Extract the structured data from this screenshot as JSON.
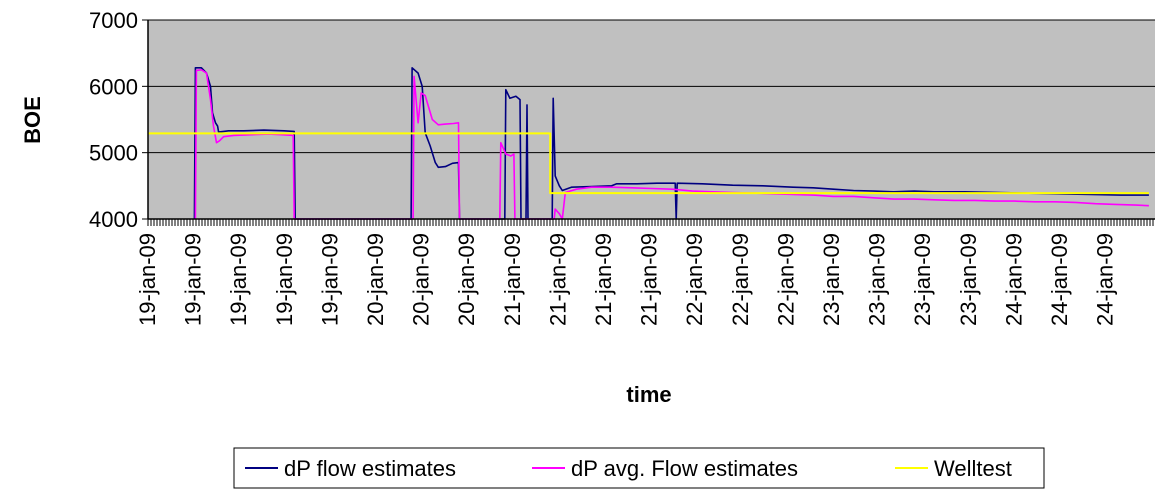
{
  "chart_data": {
    "type": "line",
    "xlabel": "time",
    "ylabel": "BOE",
    "ylim": [
      4000,
      7000
    ],
    "yticks": [
      "4000",
      "5000",
      "6000",
      "7000"
    ],
    "x_tick_labels": [
      "19-jan-09",
      "19-jan-09",
      "19-jan-09",
      "19-jan-09",
      "19-jan-09",
      "20-jan-09",
      "20-jan-09",
      "20-jan-09",
      "21-jan-09",
      "21-jan-09",
      "21-jan-09",
      "21-jan-09",
      "22-jan-09",
      "22-jan-09",
      "22-jan-09",
      "23-jan-09",
      "23-jan-09",
      "23-jan-09",
      "23-jan-09",
      "24-jan-09",
      "24-jan-09",
      "24-jan-09"
    ],
    "x_domain": [
      0,
      100
    ],
    "plot_background": "#C0C0C0",
    "grid": true,
    "legend_position": "bottom",
    "series": [
      {
        "name": "dP flow estimates",
        "color": "#000080",
        "points": [
          [
            4.6,
            4000
          ],
          [
            4.7,
            6280
          ],
          [
            5.3,
            6280
          ],
          [
            5.8,
            6200
          ],
          [
            6.2,
            6000
          ],
          [
            6.4,
            5600
          ],
          [
            6.7,
            5450
          ],
          [
            6.9,
            5400
          ],
          [
            7.0,
            5310
          ],
          [
            8.0,
            5330
          ],
          [
            9.5,
            5330
          ],
          [
            11.5,
            5340
          ],
          [
            13.5,
            5330
          ],
          [
            14.5,
            5320
          ],
          [
            14.6,
            4000
          ],
          [
            26.1,
            4000
          ],
          [
            26.2,
            6280
          ],
          [
            26.8,
            6200
          ],
          [
            27.2,
            6000
          ],
          [
            27.5,
            5300
          ],
          [
            28.0,
            5100
          ],
          [
            28.5,
            4850
          ],
          [
            28.8,
            4780
          ],
          [
            29.5,
            4790
          ],
          [
            30.2,
            4840
          ],
          [
            30.8,
            4850
          ],
          [
            30.9,
            4000
          ],
          [
            35.4,
            4000
          ],
          [
            35.5,
            5950
          ],
          [
            35.9,
            5820
          ],
          [
            36.5,
            5850
          ],
          [
            36.9,
            5800
          ],
          [
            37.0,
            4000
          ],
          [
            37.5,
            4000
          ],
          [
            37.6,
            5720
          ],
          [
            37.7,
            4000
          ],
          [
            40.1,
            4000
          ],
          [
            40.2,
            5820
          ],
          [
            40.4,
            4650
          ],
          [
            40.8,
            4500
          ],
          [
            41.1,
            4430
          ],
          [
            42.0,
            4480
          ],
          [
            44.0,
            4490
          ],
          [
            46.0,
            4500
          ],
          [
            46.5,
            4530
          ],
          [
            48.5,
            4530
          ],
          [
            50.5,
            4540
          ],
          [
            52.3,
            4540
          ],
          [
            52.4,
            4000
          ],
          [
            52.5,
            4540
          ],
          [
            55.0,
            4530
          ],
          [
            58.0,
            4510
          ],
          [
            61.0,
            4500
          ],
          [
            64.0,
            4480
          ],
          [
            66.0,
            4470
          ],
          [
            68.0,
            4450
          ],
          [
            70.0,
            4430
          ],
          [
            72.0,
            4420
          ],
          [
            74.0,
            4410
          ],
          [
            76.0,
            4420
          ],
          [
            78.0,
            4410
          ],
          [
            80.0,
            4410
          ],
          [
            81.0,
            4410
          ],
          [
            96.5,
            4360
          ],
          [
            98.0,
            4360
          ],
          [
            99.3,
            4360
          ]
        ]
      },
      {
        "name": "dP avg. Flow estimates",
        "color": "#FF00FF",
        "points": [
          [
            4.7,
            4000
          ],
          [
            4.8,
            6240
          ],
          [
            5.3,
            6250
          ],
          [
            5.8,
            6200
          ],
          [
            6.2,
            5800
          ],
          [
            6.5,
            5400
          ],
          [
            6.8,
            5150
          ],
          [
            7.1,
            5180
          ],
          [
            7.5,
            5240
          ],
          [
            8.5,
            5260
          ],
          [
            10.0,
            5270
          ],
          [
            12.0,
            5280
          ],
          [
            13.5,
            5270
          ],
          [
            14.4,
            5260
          ],
          [
            14.5,
            4000
          ],
          [
            26.3,
            4000
          ],
          [
            26.4,
            6150
          ],
          [
            26.8,
            5450
          ],
          [
            27.1,
            5900
          ],
          [
            27.5,
            5860
          ],
          [
            28.2,
            5500
          ],
          [
            28.8,
            5420
          ],
          [
            29.5,
            5430
          ],
          [
            30.3,
            5440
          ],
          [
            30.8,
            5450
          ],
          [
            30.9,
            4000
          ],
          [
            34.9,
            4000
          ],
          [
            35.0,
            5150
          ],
          [
            35.5,
            4980
          ],
          [
            36.0,
            4950
          ],
          [
            36.3,
            4980
          ],
          [
            36.4,
            4000
          ],
          [
            40.3,
            4000
          ],
          [
            40.4,
            4150
          ],
          [
            40.8,
            4080
          ],
          [
            41.1,
            4000
          ],
          [
            41.4,
            4400
          ],
          [
            42.5,
            4450
          ],
          [
            44.0,
            4480
          ],
          [
            46.0,
            4480
          ],
          [
            48.0,
            4470
          ],
          [
            50.0,
            4460
          ],
          [
            52.0,
            4450
          ],
          [
            54.0,
            4420
          ],
          [
            56.0,
            4410
          ],
          [
            58.0,
            4400
          ],
          [
            60.0,
            4390
          ],
          [
            62.0,
            4380
          ],
          [
            64.0,
            4370
          ],
          [
            66.0,
            4360
          ],
          [
            68.0,
            4340
          ],
          [
            70.0,
            4340
          ],
          [
            72.0,
            4320
          ],
          [
            74.0,
            4300
          ],
          [
            76.0,
            4300
          ],
          [
            78.0,
            4290
          ],
          [
            80.0,
            4280
          ],
          [
            82.0,
            4280
          ],
          [
            84.0,
            4270
          ],
          [
            86.0,
            4270
          ],
          [
            88.0,
            4260
          ],
          [
            90.0,
            4260
          ],
          [
            92.0,
            4250
          ],
          [
            94.0,
            4230
          ],
          [
            96.0,
            4220
          ],
          [
            98.0,
            4210
          ],
          [
            99.3,
            4200
          ]
        ]
      },
      {
        "name": "Welltest",
        "color": "#FFFF00",
        "points": [
          [
            0,
            5290
          ],
          [
            39.9,
            5290
          ],
          [
            39.9,
            4390
          ],
          [
            99.3,
            4390
          ]
        ]
      }
    ]
  }
}
